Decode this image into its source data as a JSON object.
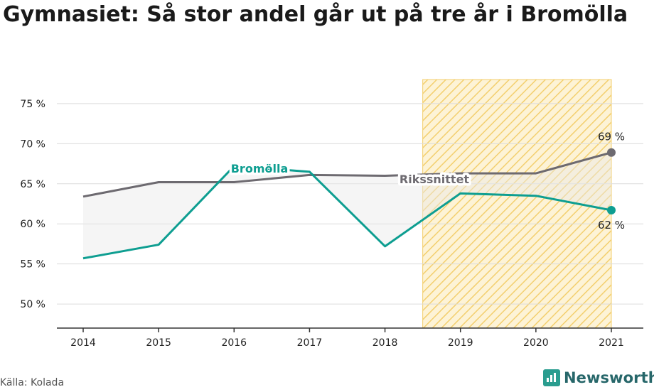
{
  "title": "Gymnasiet: Så stor andel går ut på tre år i Bromölla",
  "source": "Källa: Kolada",
  "brand": {
    "name": "Newsworthy",
    "icon": "newsworthy-logo-icon",
    "color": "#2a9d8f"
  },
  "chart_data": {
    "type": "line",
    "title": "Gymnasiet: Så stor andel går ut på tre år i Bromölla",
    "x": [
      "2014",
      "2015",
      "2016",
      "2017",
      "2018",
      "2019",
      "2020",
      "2021"
    ],
    "xlabel": "",
    "ylabel": "",
    "ylim": [
      47,
      78
    ],
    "yticks": [
      50,
      55,
      60,
      65,
      70,
      75
    ],
    "ytick_suffix": " %",
    "grid": true,
    "highlight_range": {
      "from": "2019",
      "to": "2021",
      "style": "hatched",
      "color": "#f5c542"
    },
    "series": [
      {
        "name": "Rikssnittet",
        "color": "#6d6a70",
        "values": [
          63.4,
          65.2,
          65.2,
          66.1,
          66.0,
          66.3,
          66.3,
          68.9
        ]
      },
      {
        "name": "Bromölla",
        "color": "#0e9e91",
        "values": [
          55.7,
          57.4,
          67.2,
          66.5,
          57.2,
          63.8,
          63.5,
          61.7
        ]
      }
    ],
    "end_labels": {
      "Rikssnittet": "69 %",
      "Bromölla": "62 %"
    }
  }
}
